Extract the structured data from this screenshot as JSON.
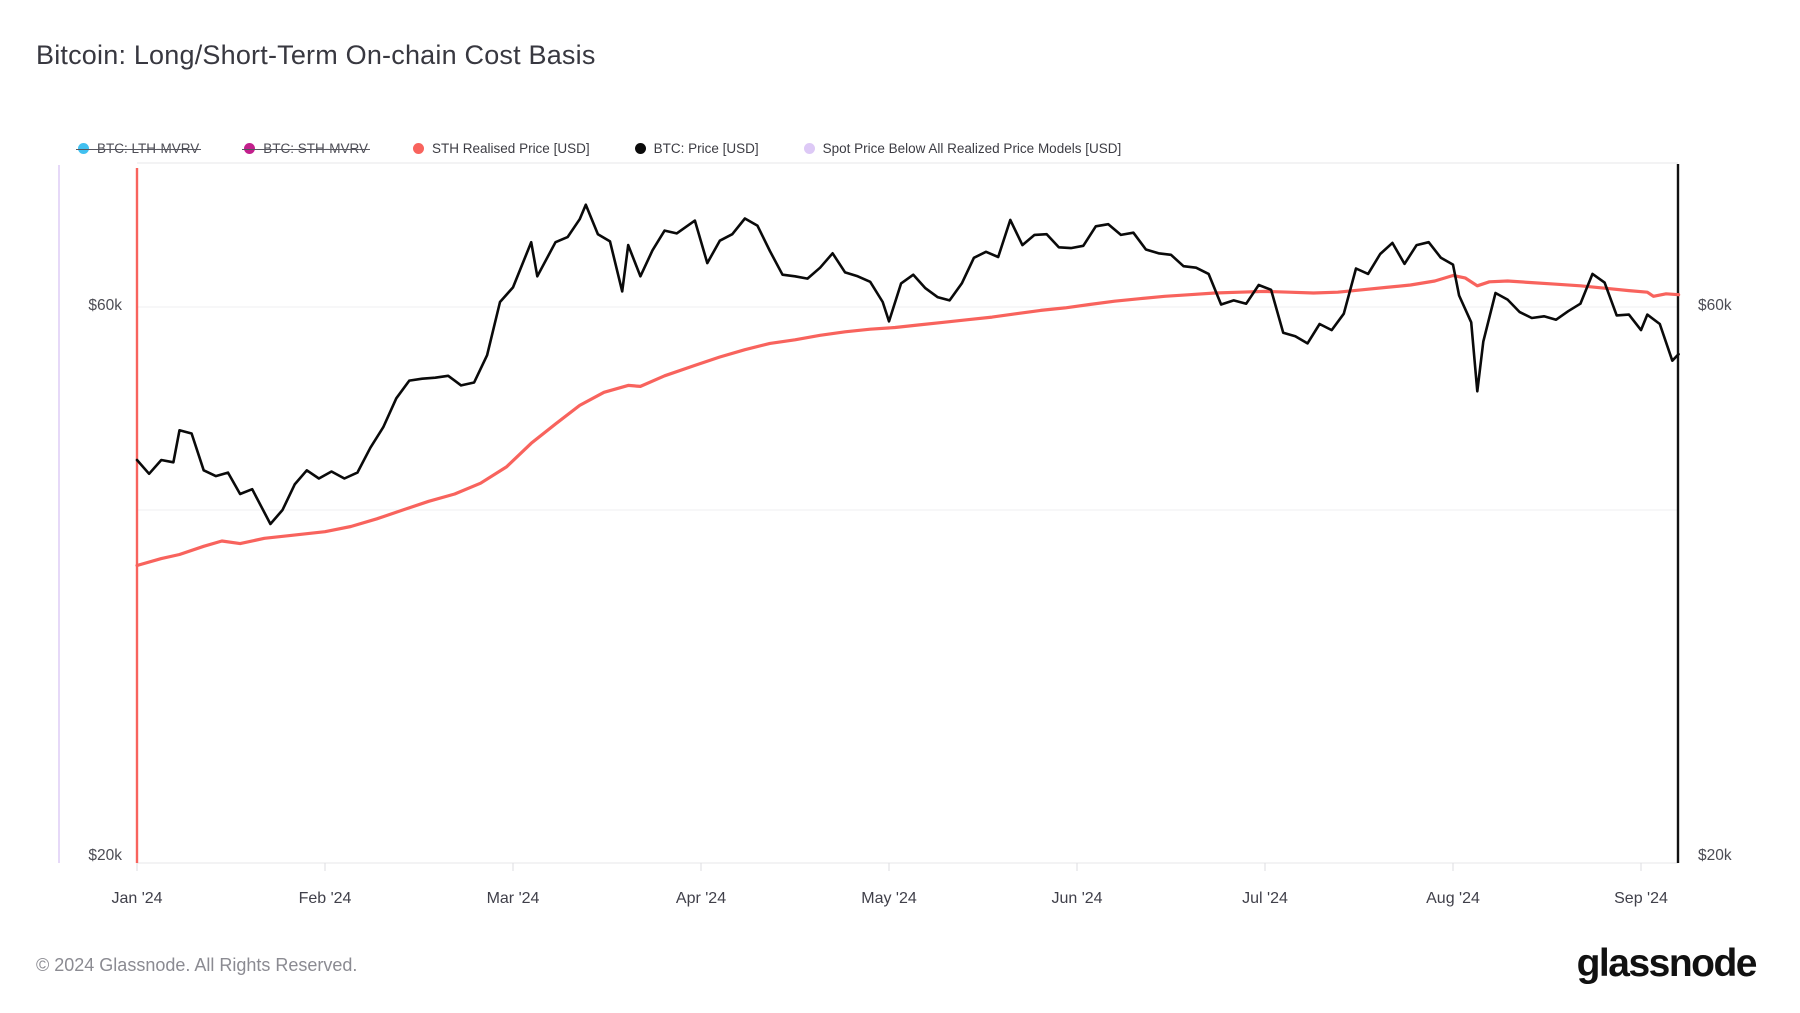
{
  "page": {
    "title": "Bitcoin: Long/Short-Term On-chain Cost Basis",
    "footer_copyright": "© 2024 Glassnode. All Rights Reserved.",
    "brand_wordmark": "glassnode"
  },
  "colors": {
    "lth_mvrv": "#41c0f0",
    "sth_mvrv": "#c21f8c",
    "sth_realised_price": "#f8635d",
    "btc_price": "#0a0a0a",
    "spot_below_models": "#e6d9f8",
    "gridline": "#efeff1",
    "plot_border": "#e7e7ea",
    "axis_text": "#4c4c54"
  },
  "legend": {
    "items": [
      {
        "label": "BTC: LTH-MVRV",
        "color": "#41c0f0",
        "struck": true
      },
      {
        "label": "BTC: STH-MVRV",
        "color": "#c21f8c",
        "struck": true
      },
      {
        "label": "STH Realised Price [USD]",
        "color": "#f8635d",
        "struck": false
      },
      {
        "label": "BTC: Price [USD]",
        "color": "#0a0a0a",
        "struck": false
      },
      {
        "label": "Spot Price Below All Realized Price Models [USD]",
        "color": "#ddc9f6",
        "struck": false
      }
    ]
  },
  "chart_data": {
    "type": "line",
    "title": "Bitcoin: Long/Short-Term On-chain Cost Basis",
    "x_axis": {
      "ticks": [
        "Jan '24",
        "Feb '24",
        "Mar '24",
        "Apr '24",
        "May '24",
        "Jun '24",
        "Jul '24",
        "Aug '24",
        "Sep '24"
      ]
    },
    "y_axis": {
      "scale": "log",
      "units": "USD",
      "ylim_usd": [
        20000,
        80000
      ],
      "tick_labels": [
        {
          "value_k": 60,
          "label": "$60k"
        },
        {
          "value_k": 20,
          "label": "$20k"
        }
      ],
      "gridline_values_k": [
        40,
        60
      ],
      "label_sides": [
        "left",
        "right"
      ]
    },
    "markers": [
      {
        "name": "spot-price-below-models-marker",
        "orientation": "vertical",
        "color": "#e6d9f8",
        "position": "far-left"
      },
      {
        "name": "series-start-line",
        "orientation": "vertical",
        "color": "#f8635d",
        "position": "plot-left"
      },
      {
        "name": "series-end-line",
        "orientation": "vertical",
        "color": "#111111",
        "position": "plot-right"
      }
    ],
    "series": [
      {
        "name": "STH Realised Price [USD]",
        "color": "#f8635d",
        "width": 3.2,
        "units": "USD thousands",
        "points": [
          [
            "2024-01-01",
            35.8
          ],
          [
            "2024-01-05",
            36.3
          ],
          [
            "2024-01-08",
            36.6
          ],
          [
            "2024-01-12",
            37.2
          ],
          [
            "2024-01-15",
            37.6
          ],
          [
            "2024-01-18",
            37.4
          ],
          [
            "2024-01-22",
            37.8
          ],
          [
            "2024-01-26",
            38.0
          ],
          [
            "2024-02-01",
            38.3
          ],
          [
            "2024-02-05",
            38.7
          ],
          [
            "2024-02-09",
            39.3
          ],
          [
            "2024-02-13",
            40.0
          ],
          [
            "2024-02-17",
            40.7
          ],
          [
            "2024-02-21",
            41.3
          ],
          [
            "2024-02-25",
            42.2
          ],
          [
            "2024-02-29",
            43.6
          ],
          [
            "2024-03-04",
            45.7
          ],
          [
            "2024-03-08",
            47.5
          ],
          [
            "2024-03-12",
            49.3
          ],
          [
            "2024-03-16",
            50.6
          ],
          [
            "2024-03-20",
            51.3
          ],
          [
            "2024-03-22",
            51.2
          ],
          [
            "2024-03-26",
            52.3
          ],
          [
            "2024-03-31",
            53.4
          ],
          [
            "2024-04-04",
            54.3
          ],
          [
            "2024-04-08",
            55.1
          ],
          [
            "2024-04-12",
            55.8
          ],
          [
            "2024-04-16",
            56.2
          ],
          [
            "2024-04-20",
            56.7
          ],
          [
            "2024-04-24",
            57.1
          ],
          [
            "2024-04-28",
            57.4
          ],
          [
            "2024-05-02",
            57.6
          ],
          [
            "2024-05-06",
            57.9
          ],
          [
            "2024-05-10",
            58.2
          ],
          [
            "2024-05-14",
            58.5
          ],
          [
            "2024-05-18",
            58.8
          ],
          [
            "2024-05-22",
            59.2
          ],
          [
            "2024-05-26",
            59.6
          ],
          [
            "2024-05-30",
            59.9
          ],
          [
            "2024-06-03",
            60.3
          ],
          [
            "2024-06-07",
            60.7
          ],
          [
            "2024-06-11",
            61.0
          ],
          [
            "2024-06-15",
            61.3
          ],
          [
            "2024-06-19",
            61.5
          ],
          [
            "2024-06-23",
            61.7
          ],
          [
            "2024-06-27",
            61.8
          ],
          [
            "2024-07-01",
            61.9
          ],
          [
            "2024-07-05",
            61.8
          ],
          [
            "2024-07-09",
            61.7
          ],
          [
            "2024-07-13",
            61.8
          ],
          [
            "2024-07-17",
            62.1
          ],
          [
            "2024-07-21",
            62.4
          ],
          [
            "2024-07-25",
            62.7
          ],
          [
            "2024-07-29",
            63.2
          ],
          [
            "2024-08-01",
            63.9
          ],
          [
            "2024-08-03",
            63.6
          ],
          [
            "2024-08-05",
            62.6
          ],
          [
            "2024-08-07",
            63.1
          ],
          [
            "2024-08-10",
            63.2
          ],
          [
            "2024-08-14",
            63.0
          ],
          [
            "2024-08-18",
            62.8
          ],
          [
            "2024-08-22",
            62.6
          ],
          [
            "2024-08-26",
            62.3
          ],
          [
            "2024-08-30",
            62.0
          ],
          [
            "2024-09-02",
            61.8
          ],
          [
            "2024-09-03",
            61.3
          ],
          [
            "2024-09-05",
            61.6
          ],
          [
            "2024-09-07",
            61.5
          ]
        ]
      },
      {
        "name": "BTC: Price [USD]",
        "color": "#0a0a0a",
        "width": 2.6,
        "units": "USD thousands",
        "points": [
          [
            "2024-01-01",
            44.2
          ],
          [
            "2024-01-03",
            43.0
          ],
          [
            "2024-01-05",
            44.2
          ],
          [
            "2024-01-07",
            44.0
          ],
          [
            "2024-01-08",
            46.9
          ],
          [
            "2024-01-10",
            46.6
          ],
          [
            "2024-01-12",
            43.3
          ],
          [
            "2024-01-14",
            42.8
          ],
          [
            "2024-01-16",
            43.1
          ],
          [
            "2024-01-18",
            41.3
          ],
          [
            "2024-01-20",
            41.7
          ],
          [
            "2024-01-23",
            38.9
          ],
          [
            "2024-01-25",
            40.0
          ],
          [
            "2024-01-27",
            42.1
          ],
          [
            "2024-01-29",
            43.3
          ],
          [
            "2024-01-31",
            42.6
          ],
          [
            "2024-02-02",
            43.2
          ],
          [
            "2024-02-04",
            42.6
          ],
          [
            "2024-02-06",
            43.1
          ],
          [
            "2024-02-08",
            45.3
          ],
          [
            "2024-02-10",
            47.2
          ],
          [
            "2024-02-12",
            50.0
          ],
          [
            "2024-02-14",
            51.8
          ],
          [
            "2024-02-16",
            52.0
          ],
          [
            "2024-02-18",
            52.1
          ],
          [
            "2024-02-20",
            52.3
          ],
          [
            "2024-02-22",
            51.3
          ],
          [
            "2024-02-24",
            51.6
          ],
          [
            "2024-02-26",
            54.5
          ],
          [
            "2024-02-28",
            60.6
          ],
          [
            "2024-03-01",
            62.4
          ],
          [
            "2024-03-04",
            68.3
          ],
          [
            "2024-03-05",
            63.8
          ],
          [
            "2024-03-08",
            68.3
          ],
          [
            "2024-03-10",
            69.0
          ],
          [
            "2024-03-12",
            71.5
          ],
          [
            "2024-03-13",
            73.6
          ],
          [
            "2024-03-15",
            69.4
          ],
          [
            "2024-03-17",
            68.4
          ],
          [
            "2024-03-19",
            61.9
          ],
          [
            "2024-03-20",
            67.9
          ],
          [
            "2024-03-22",
            63.8
          ],
          [
            "2024-03-24",
            67.2
          ],
          [
            "2024-03-26",
            69.9
          ],
          [
            "2024-03-28",
            69.5
          ],
          [
            "2024-03-31",
            71.3
          ],
          [
            "2024-04-02",
            65.5
          ],
          [
            "2024-04-04",
            68.5
          ],
          [
            "2024-04-06",
            69.4
          ],
          [
            "2024-04-08",
            71.6
          ],
          [
            "2024-04-10",
            70.6
          ],
          [
            "2024-04-12",
            67.1
          ],
          [
            "2024-04-14",
            64.0
          ],
          [
            "2024-04-16",
            63.8
          ],
          [
            "2024-04-18",
            63.5
          ],
          [
            "2024-04-20",
            64.9
          ],
          [
            "2024-04-22",
            66.8
          ],
          [
            "2024-04-24",
            64.3
          ],
          [
            "2024-04-26",
            63.8
          ],
          [
            "2024-04-28",
            63.1
          ],
          [
            "2024-04-30",
            60.6
          ],
          [
            "2024-05-01",
            58.3
          ],
          [
            "2024-05-03",
            62.9
          ],
          [
            "2024-05-05",
            64.0
          ],
          [
            "2024-05-07",
            62.3
          ],
          [
            "2024-05-09",
            61.2
          ],
          [
            "2024-05-11",
            60.8
          ],
          [
            "2024-05-13",
            62.9
          ],
          [
            "2024-05-15",
            66.2
          ],
          [
            "2024-05-17",
            67.0
          ],
          [
            "2024-05-19",
            66.3
          ],
          [
            "2024-05-21",
            71.4
          ],
          [
            "2024-05-23",
            67.9
          ],
          [
            "2024-05-25",
            69.3
          ],
          [
            "2024-05-27",
            69.4
          ],
          [
            "2024-05-29",
            67.6
          ],
          [
            "2024-05-31",
            67.5
          ],
          [
            "2024-06-02",
            67.8
          ],
          [
            "2024-06-04",
            70.5
          ],
          [
            "2024-06-06",
            70.8
          ],
          [
            "2024-06-08",
            69.3
          ],
          [
            "2024-06-10",
            69.6
          ],
          [
            "2024-06-12",
            67.3
          ],
          [
            "2024-06-14",
            66.8
          ],
          [
            "2024-06-16",
            66.6
          ],
          [
            "2024-06-18",
            65.1
          ],
          [
            "2024-06-20",
            64.9
          ],
          [
            "2024-06-22",
            64.1
          ],
          [
            "2024-06-24",
            60.3
          ],
          [
            "2024-06-26",
            60.8
          ],
          [
            "2024-06-28",
            60.4
          ],
          [
            "2024-06-30",
            62.7
          ],
          [
            "2024-07-02",
            62.1
          ],
          [
            "2024-07-04",
            57.0
          ],
          [
            "2024-07-06",
            56.6
          ],
          [
            "2024-07-08",
            55.8
          ],
          [
            "2024-07-10",
            58.0
          ],
          [
            "2024-07-12",
            57.3
          ],
          [
            "2024-07-14",
            59.2
          ],
          [
            "2024-07-16",
            64.8
          ],
          [
            "2024-07-18",
            64.1
          ],
          [
            "2024-07-20",
            66.7
          ],
          [
            "2024-07-22",
            68.2
          ],
          [
            "2024-07-24",
            65.4
          ],
          [
            "2024-07-26",
            67.9
          ],
          [
            "2024-07-28",
            68.3
          ],
          [
            "2024-07-30",
            66.2
          ],
          [
            "2024-08-01",
            65.3
          ],
          [
            "2024-08-02",
            61.4
          ],
          [
            "2024-08-04",
            58.2
          ],
          [
            "2024-08-05",
            50.7
          ],
          [
            "2024-08-06",
            56.0
          ],
          [
            "2024-08-08",
            61.7
          ],
          [
            "2024-08-10",
            60.9
          ],
          [
            "2024-08-12",
            59.4
          ],
          [
            "2024-08-14",
            58.7
          ],
          [
            "2024-08-16",
            58.9
          ],
          [
            "2024-08-18",
            58.5
          ],
          [
            "2024-08-20",
            59.5
          ],
          [
            "2024-08-22",
            60.4
          ],
          [
            "2024-08-24",
            64.1
          ],
          [
            "2024-08-26",
            63.0
          ],
          [
            "2024-08-28",
            59.0
          ],
          [
            "2024-08-30",
            59.1
          ],
          [
            "2024-09-01",
            57.3
          ],
          [
            "2024-09-02",
            59.1
          ],
          [
            "2024-09-04",
            58.0
          ],
          [
            "2024-09-06",
            53.9
          ],
          [
            "2024-09-07",
            54.6
          ]
        ]
      }
    ]
  }
}
